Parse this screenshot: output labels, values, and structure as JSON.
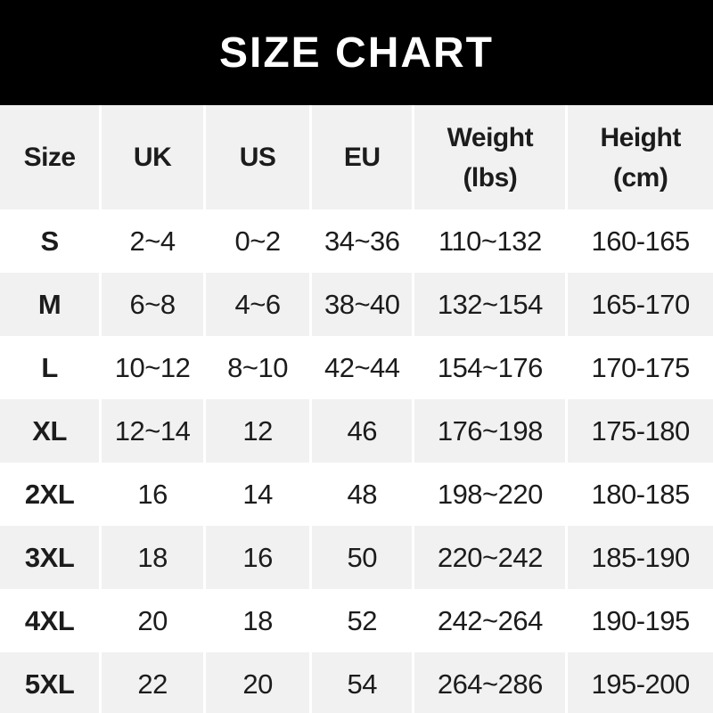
{
  "title": "SIZE CHART",
  "colors": {
    "banner_bg": "#000000",
    "banner_text": "#ffffff",
    "row_bg": "#ffffff",
    "row_alt_bg": "#f1f1f1",
    "header_bg": "#f1f1f1",
    "separator": "#ffffff",
    "text": "#1c1c1c"
  },
  "chart_data": {
    "type": "table",
    "title": "SIZE CHART",
    "columns": [
      {
        "label": "Size",
        "sub": ""
      },
      {
        "label": "UK",
        "sub": ""
      },
      {
        "label": "US",
        "sub": ""
      },
      {
        "label": "EU",
        "sub": ""
      },
      {
        "label": "Weight",
        "sub": "(lbs)"
      },
      {
        "label": "Height",
        "sub": "(cm)"
      }
    ],
    "rows": [
      [
        "S",
        "2~4",
        "0~2",
        "34~36",
        "110~132",
        "160-165"
      ],
      [
        "M",
        "6~8",
        "4~6",
        "38~40",
        "132~154",
        "165-170"
      ],
      [
        "L",
        "10~12",
        "8~10",
        "42~44",
        "154~176",
        "170-175"
      ],
      [
        "XL",
        "12~14",
        "12",
        "46",
        "176~198",
        "175-180"
      ],
      [
        "2XL",
        "16",
        "14",
        "48",
        "198~220",
        "180-185"
      ],
      [
        "3XL",
        "18",
        "16",
        "50",
        "220~242",
        "185-190"
      ],
      [
        "4XL",
        "20",
        "18",
        "52",
        "242~264",
        "190-195"
      ],
      [
        "5XL",
        "22",
        "20",
        "54",
        "264~286",
        "195-200"
      ]
    ]
  }
}
